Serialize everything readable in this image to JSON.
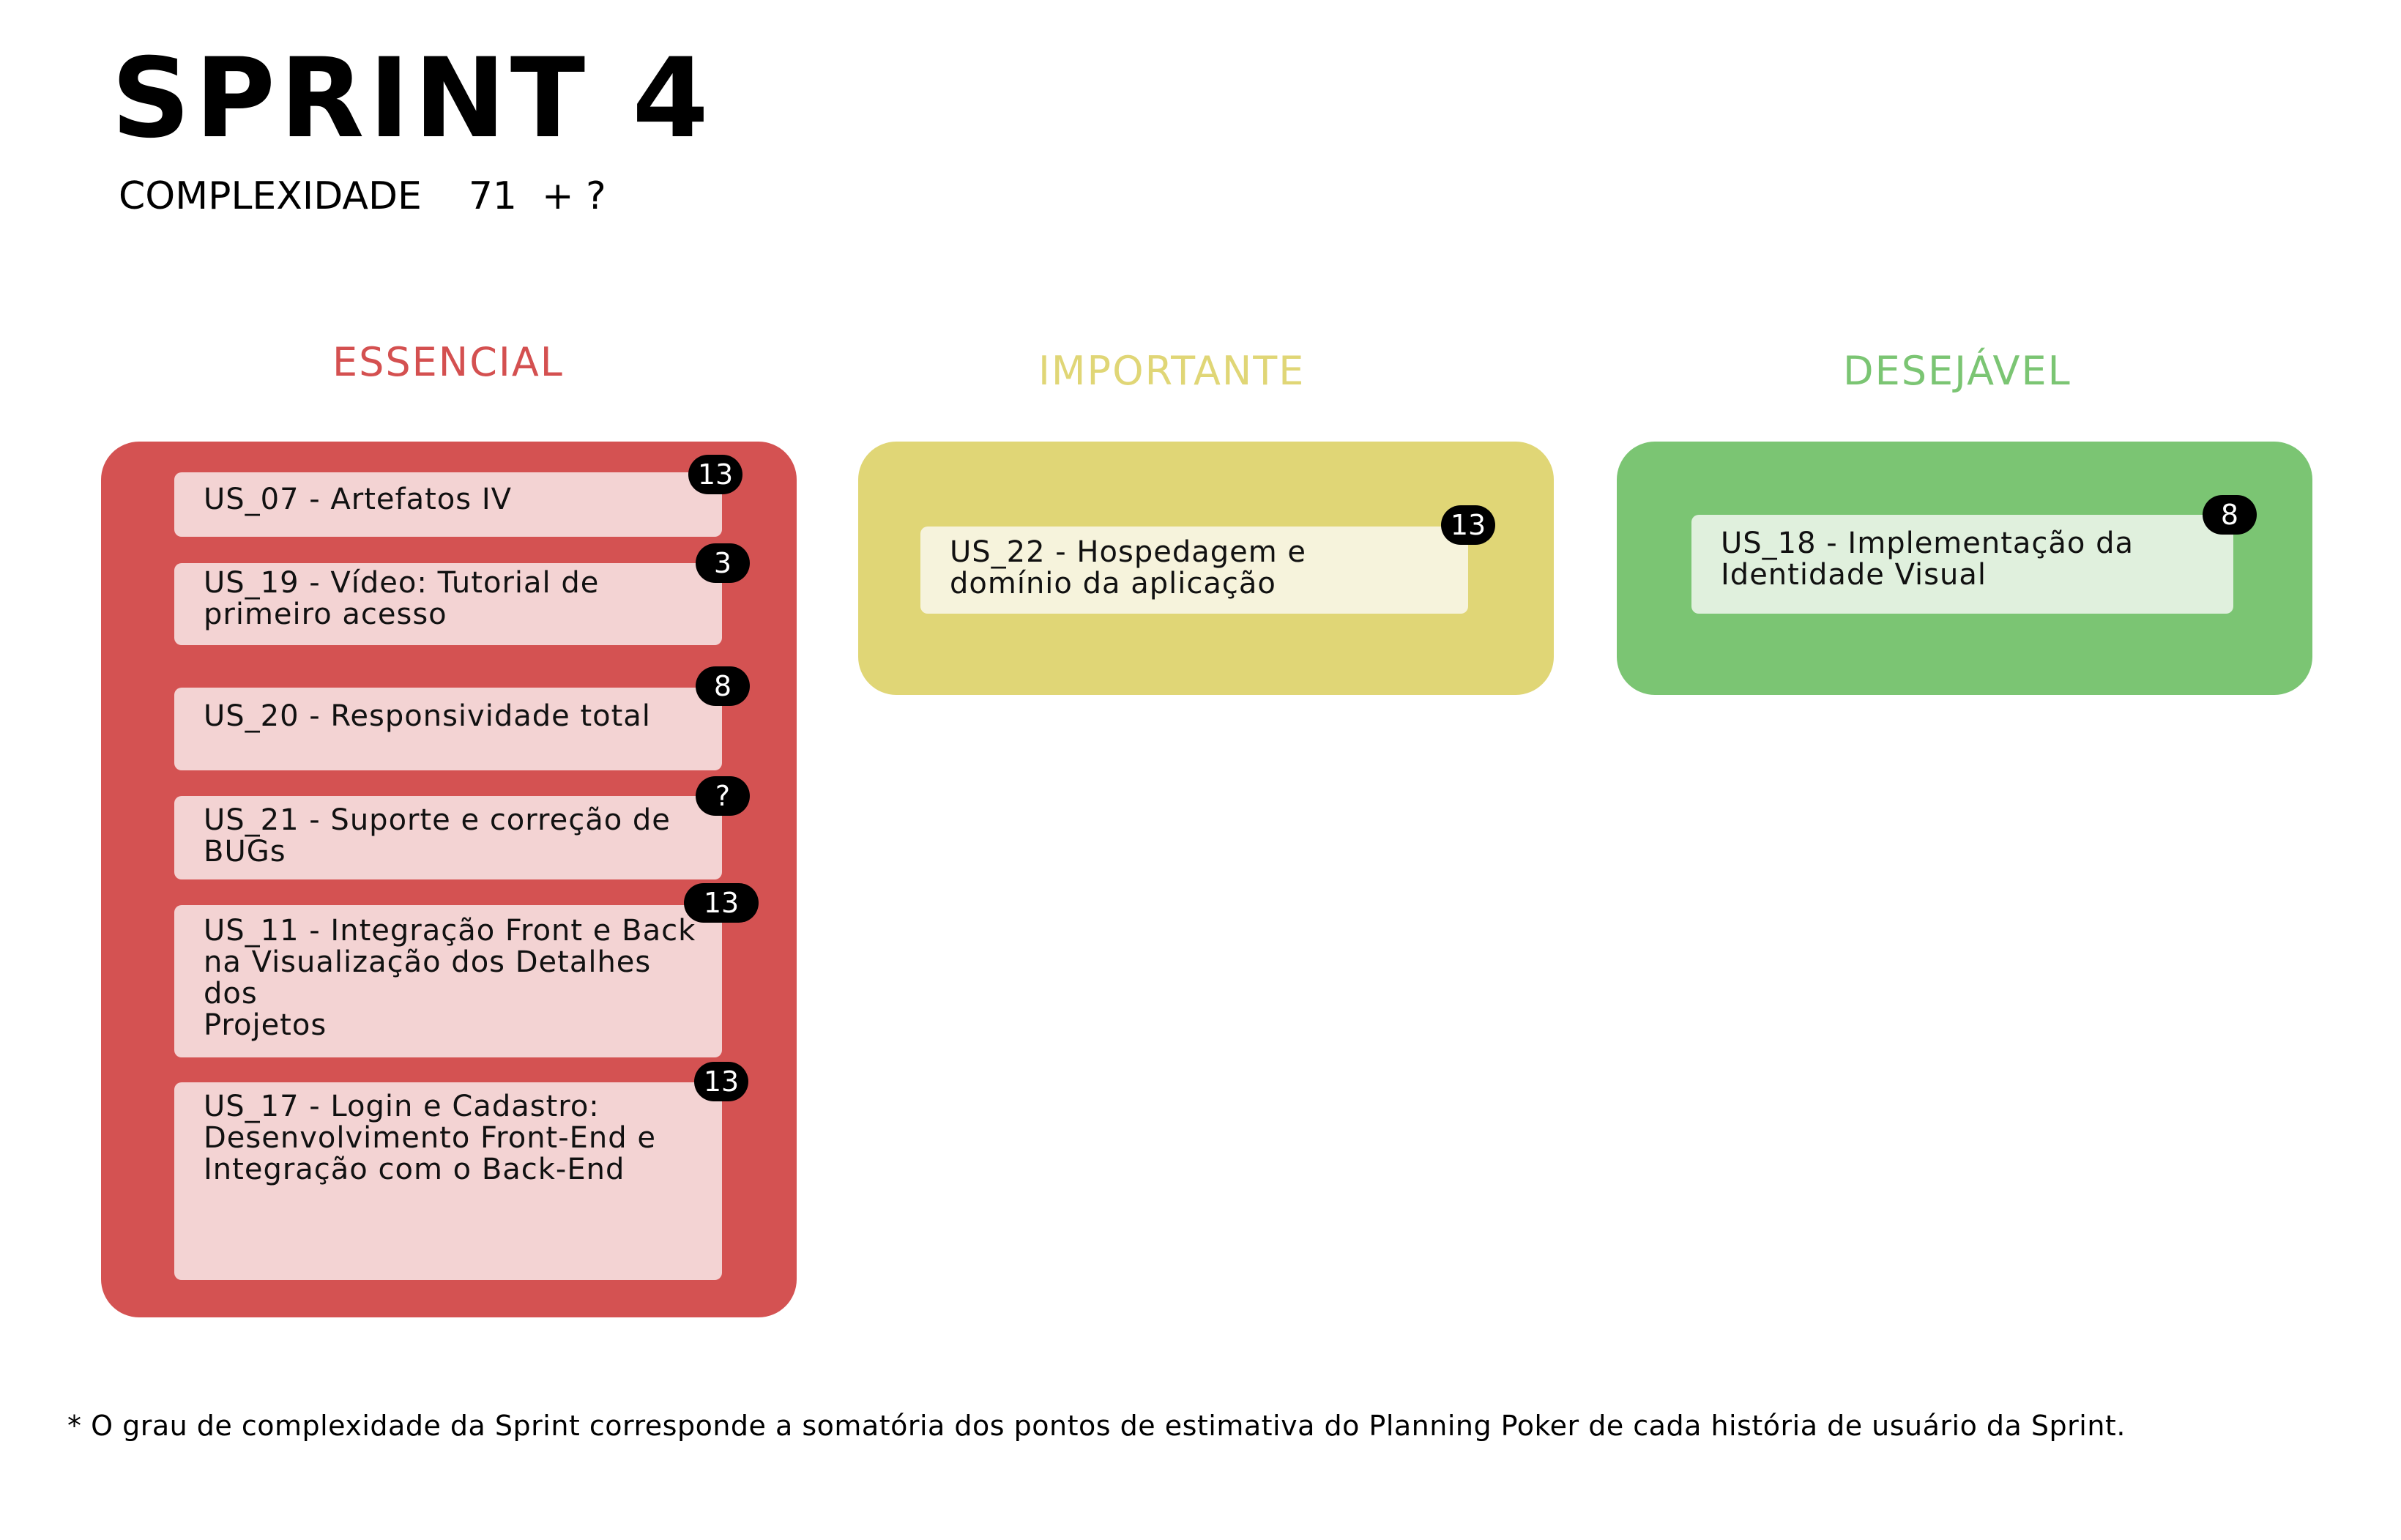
{
  "header": {
    "title": "SPRINT 4",
    "complexity_label": "COMPLEXIDADE",
    "complexity_value": "71",
    "complexity_extra": "+ ?"
  },
  "colors": {
    "essencial_title": "#d45050",
    "essencial_panel": "#d45252",
    "essencial_card": "#f3d3d3",
    "importante_title": "#e0d676",
    "importante_panel": "#e0d676",
    "importante_card": "#f6f3dc",
    "desejavel_title": "#7bc573",
    "desejavel_panel": "#7bc573",
    "desejavel_card": "#e0f0dd",
    "badge": "#000000"
  },
  "columns": {
    "essencial": {
      "title": "ESSENCIAL",
      "cards": [
        {
          "text": "US_07 - Artefatos IV",
          "points": "13"
        },
        {
          "text": "US_19 - Vídeo: Tutorial de\nprimeiro acesso",
          "points": "3"
        },
        {
          "text": "US_20 - Responsividade total",
          "points": "8"
        },
        {
          "text": "US_21 - Suporte e correção de\nBUGs",
          "points": "?"
        },
        {
          "text": "US_11 - Integração Front e Back\nna Visualização dos Detalhes dos\nProjetos",
          "points": "13"
        },
        {
          "text": "US_17 - Login e Cadastro:\nDesenvolvimento Front-End e\nIntegração com o Back-End",
          "points": "13"
        }
      ]
    },
    "importante": {
      "title": "IMPORTANTE",
      "cards": [
        {
          "text": "US_22 - Hospedagem e\ndomínio da aplicação",
          "points": "13"
        }
      ]
    },
    "desejavel": {
      "title": "DESEJÁVEL",
      "cards": [
        {
          "text": "US_18 - Implementação da\nIdentidade Visual",
          "points": "8"
        }
      ]
    }
  },
  "footnote": "* O grau de complexidade da Sprint corresponde a somatória dos pontos de estimativa do Planning Poker de cada história de usuário da Sprint."
}
